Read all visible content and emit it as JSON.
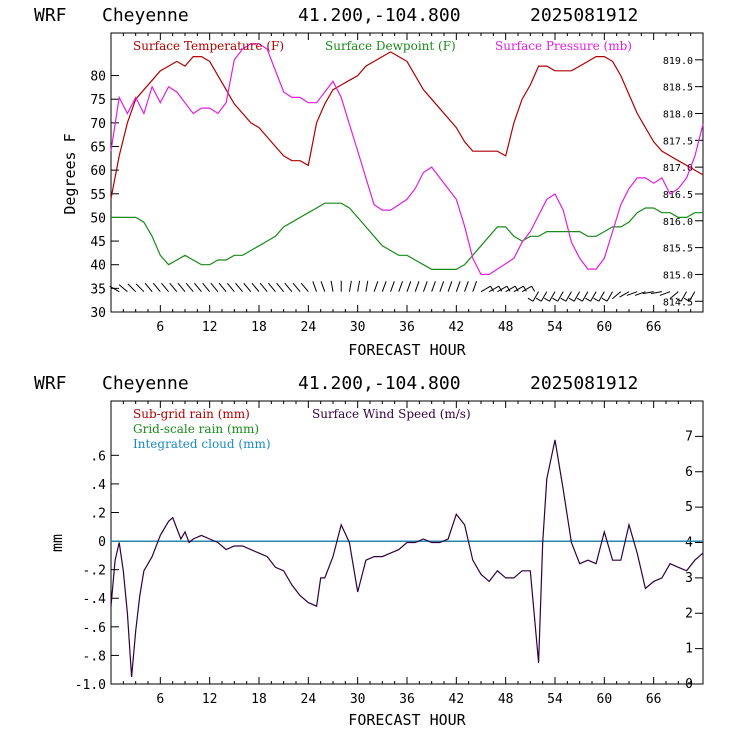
{
  "header": {
    "model": "WRF",
    "location": "Cheyenne",
    "coords": "41.200,-104.800",
    "init": "2025081912"
  },
  "colors": {
    "temperature": "#b00000",
    "dewpoint": "#1a8a1a",
    "pressure": "#e020e0",
    "subgrid_rain": "#b00000",
    "grid_rain": "#1a8a1a",
    "cloud": "#1a8ac0",
    "wind": "#300040"
  },
  "chart_data": [
    {
      "type": "line",
      "xlabel": "FORECAST HOUR",
      "ylabel": "Degrees F",
      "xlim": [
        0,
        72
      ],
      "ylim": [
        30,
        89
      ],
      "xticks": [
        "6",
        "12",
        "18",
        "24",
        "30",
        "36",
        "42",
        "48",
        "54",
        "60",
        "66"
      ],
      "yticks": [
        "30",
        "35",
        "40",
        "45",
        "50",
        "55",
        "60",
        "65",
        "70",
        "75",
        "80"
      ],
      "y2lim": [
        814.3,
        819.5
      ],
      "y2ticks": [
        "814.5",
        "815.0",
        "815.5",
        "816.0",
        "816.5",
        "817.0",
        "817.5",
        "818.0",
        "818.5",
        "819.0"
      ],
      "legend": [
        "Surface Temperature (F)",
        "Surface Dewpoint (F)",
        "Surface Pressure (mb)"
      ],
      "series": [
        {
          "name": "Surface Temperature (F)",
          "x": [
            0,
            1,
            2,
            3,
            4,
            5,
            6,
            7,
            8,
            9,
            10,
            11,
            12,
            13,
            14,
            15,
            16,
            17,
            18,
            19,
            20,
            21,
            22,
            23,
            24,
            25,
            26,
            27,
            28,
            29,
            30,
            31,
            32,
            33,
            34,
            35,
            36,
            37,
            38,
            39,
            40,
            41,
            42,
            43,
            44,
            45,
            46,
            47,
            48,
            49,
            50,
            51,
            52,
            53,
            54,
            55,
            56,
            57,
            58,
            59,
            60,
            61,
            62,
            63,
            64,
            65,
            66,
            67,
            68,
            69,
            70,
            71,
            72
          ],
          "values": [
            54,
            63,
            70,
            75,
            77,
            79,
            81,
            82,
            83,
            82,
            84,
            84,
            83,
            80,
            77,
            74,
            72,
            70,
            69,
            67,
            65,
            63,
            62,
            62,
            61,
            70,
            74,
            77,
            78,
            79,
            80,
            82,
            83,
            84,
            85,
            84,
            83,
            80,
            77,
            75,
            73,
            71,
            69,
            66,
            64,
            64,
            64,
            64,
            63,
            70,
            75,
            78,
            82,
            82,
            81,
            81,
            81,
            82,
            83,
            84,
            84,
            83,
            80,
            76,
            72,
            69,
            66,
            64,
            63,
            62,
            61,
            60,
            59
          ]
        },
        {
          "name": "Surface Dewpoint (F)",
          "x": [
            0,
            1,
            2,
            3,
            4,
            5,
            6,
            7,
            8,
            9,
            10,
            11,
            12,
            13,
            14,
            15,
            16,
            17,
            18,
            19,
            20,
            21,
            22,
            23,
            24,
            25,
            26,
            27,
            28,
            29,
            30,
            31,
            32,
            33,
            34,
            35,
            36,
            37,
            38,
            39,
            40,
            41,
            42,
            43,
            44,
            45,
            46,
            47,
            48,
            49,
            50,
            51,
            52,
            53,
            54,
            55,
            56,
            57,
            58,
            59,
            60,
            61,
            62,
            63,
            64,
            65,
            66,
            67,
            68,
            69,
            70,
            71,
            72
          ],
          "values": [
            50,
            50,
            50,
            50,
            49,
            46,
            42,
            40,
            41,
            42,
            41,
            40,
            40,
            41,
            41,
            42,
            42,
            43,
            44,
            45,
            46,
            48,
            49,
            50,
            51,
            52,
            53,
            53,
            53,
            52,
            50,
            48,
            46,
            44,
            43,
            42,
            42,
            41,
            40,
            39,
            39,
            39,
            39,
            40,
            42,
            44,
            46,
            48,
            48,
            46,
            45,
            46,
            46,
            47,
            47,
            47,
            47,
            47,
            46,
            46,
            47,
            48,
            48,
            49,
            51,
            52,
            52,
            51,
            51,
            50,
            50,
            51,
            51
          ]
        },
        {
          "name": "Surface Pressure (mb)",
          "axis": "right",
          "x": [
            0,
            1,
            2,
            3,
            4,
            5,
            6,
            7,
            8,
            9,
            10,
            11,
            12,
            13,
            14,
            15,
            16,
            17,
            18,
            19,
            20,
            21,
            22,
            23,
            24,
            25,
            26,
            27,
            28,
            29,
            30,
            31,
            32,
            33,
            34,
            35,
            36,
            37,
            38,
            39,
            40,
            41,
            42,
            43,
            44,
            45,
            46,
            47,
            48,
            49,
            50,
            51,
            52,
            53,
            54,
            55,
            56,
            57,
            58,
            59,
            60,
            61,
            62,
            63,
            64,
            65,
            66,
            67,
            68,
            69,
            70,
            71,
            72
          ],
          "values": [
            817.3,
            818.3,
            818.0,
            818.3,
            818.0,
            818.5,
            818.2,
            818.5,
            818.4,
            818.2,
            818.0,
            818.1,
            818.1,
            818.0,
            818.2,
            819.0,
            819.2,
            819.3,
            819.3,
            819.2,
            818.8,
            818.4,
            818.3,
            818.3,
            818.2,
            818.2,
            818.4,
            818.6,
            818.3,
            817.8,
            817.3,
            816.8,
            816.3,
            816.2,
            816.2,
            816.3,
            816.4,
            816.6,
            816.9,
            817.0,
            816.8,
            816.6,
            816.4,
            815.9,
            815.3,
            815.0,
            815.0,
            815.1,
            815.2,
            815.3,
            815.6,
            815.8,
            816.1,
            816.4,
            816.5,
            816.2,
            815.6,
            815.3,
            815.1,
            815.1,
            815.3,
            815.8,
            816.3,
            816.6,
            816.8,
            816.8,
            816.7,
            816.8,
            816.5,
            816.6,
            816.8,
            817.2,
            817.8
          ]
        }
      ],
      "wind_barbs": {
        "x": [
          1,
          2,
          3,
          4,
          5,
          6,
          7,
          8,
          9,
          10,
          11,
          12,
          13,
          14,
          15,
          16,
          17,
          18,
          19,
          20,
          21,
          22,
          23,
          24,
          25,
          26,
          27,
          28,
          29,
          30,
          31,
          32,
          33,
          34,
          35,
          36,
          37,
          38,
          39,
          40,
          41,
          42,
          43,
          44,
          45,
          46,
          47,
          48,
          49,
          50,
          52,
          53,
          54,
          55,
          56,
          57,
          58,
          59,
          60,
          61,
          62,
          63,
          64,
          65,
          66,
          67,
          68,
          69,
          70,
          71
        ],
        "direction_deg": [
          300,
          310,
          315,
          315,
          320,
          320,
          320,
          320,
          320,
          320,
          320,
          320,
          320,
          320,
          320,
          320,
          320,
          320,
          320,
          320,
          320,
          320,
          320,
          320,
          340,
          340,
          350,
          0,
          10,
          10,
          10,
          20,
          20,
          20,
          20,
          20,
          20,
          20,
          20,
          20,
          20,
          20,
          20,
          20,
          60,
          60,
          60,
          60,
          60,
          60,
          210,
          210,
          210,
          210,
          210,
          210,
          210,
          210,
          210,
          210,
          230,
          240,
          250,
          250,
          260,
          260,
          250,
          230,
          210,
          210
        ],
        "speed_kt": [
          5,
          5,
          5,
          5,
          5,
          5,
          5,
          5,
          5,
          5,
          5,
          5,
          5,
          5,
          5,
          5,
          5,
          5,
          5,
          5,
          5,
          5,
          5,
          5,
          5,
          5,
          5,
          5,
          5,
          5,
          5,
          5,
          5,
          5,
          5,
          5,
          5,
          5,
          5,
          5,
          5,
          5,
          5,
          5,
          10,
          10,
          10,
          10,
          10,
          10,
          10,
          10,
          10,
          10,
          10,
          10,
          10,
          10,
          10,
          10,
          5,
          5,
          5,
          5,
          5,
          5,
          5,
          5,
          10,
          10
        ]
      }
    },
    {
      "type": "line",
      "xlabel": "FORECAST HOUR",
      "ylabel": "mm",
      "xlim": [
        0,
        72
      ],
      "ylim": [
        -1.0,
        0.98
      ],
      "xticks": [
        "6",
        "12",
        "18",
        "24",
        "30",
        "36",
        "42",
        "48",
        "54",
        "60",
        "66"
      ],
      "yticks": [
        "-1.0",
        "-.8",
        "-.6",
        "-.4",
        "-.2",
        "0",
        ".2",
        ".4",
        ".6"
      ],
      "y2lim": [
        0,
        8
      ],
      "y2ticks": [
        "0",
        "1",
        "2",
        "3",
        "4",
        "5",
        "6",
        "7"
      ],
      "legend": [
        "Sub-grid rain (mm)",
        "Grid-scale rain (mm)",
        "Integrated cloud (mm)",
        "Surface Wind Speed (m/s)"
      ],
      "series": [
        {
          "name": "Sub-grid rain (mm)",
          "x": [
            0,
            72
          ],
          "values": [
            0,
            0
          ]
        },
        {
          "name": "Grid-scale rain (mm)",
          "x": [
            0,
            72
          ],
          "values": [
            0,
            0
          ]
        },
        {
          "name": "Integrated cloud (mm)",
          "x": [
            0,
            72
          ],
          "values": [
            0,
            0
          ]
        },
        {
          "name": "Surface Wind Speed (m/s)",
          "axis": "right",
          "x": [
            0,
            0.5,
            1,
            1.5,
            2,
            2.5,
            3,
            3.5,
            4,
            5,
            6,
            7,
            7.5,
            8,
            8.5,
            9,
            9.5,
            10,
            11,
            12,
            13,
            14,
            15,
            16,
            17,
            18,
            19,
            20,
            21,
            22,
            23,
            24,
            25,
            25.5,
            26,
            27,
            28,
            29,
            30,
            31,
            32,
            33,
            34,
            35,
            36,
            37,
            38,
            39,
            40,
            41,
            42,
            43,
            44,
            45,
            46,
            47,
            48,
            49,
            50,
            51,
            52,
            52.5,
            53,
            54,
            55,
            56,
            57,
            58,
            59,
            60,
            61,
            62,
            63,
            64,
            65,
            66,
            67,
            68,
            69,
            70,
            71,
            72
          ],
          "values": [
            2.2,
            3.5,
            4.0,
            3.2,
            2.0,
            0.2,
            1.5,
            2.5,
            3.2,
            3.6,
            4.2,
            4.6,
            4.7,
            4.4,
            4.1,
            4.3,
            4.0,
            4.1,
            4.2,
            4.1,
            4.0,
            3.8,
            3.9,
            3.9,
            3.8,
            3.7,
            3.6,
            3.3,
            3.2,
            2.8,
            2.5,
            2.3,
            2.2,
            3.0,
            3.0,
            3.6,
            4.5,
            4.0,
            2.6,
            3.5,
            3.6,
            3.6,
            3.7,
            3.8,
            4.0,
            4.0,
            4.1,
            4.0,
            4.0,
            4.1,
            4.8,
            4.5,
            3.5,
            3.1,
            2.9,
            3.2,
            3.0,
            3.0,
            3.2,
            3.2,
            0.6,
            4.0,
            5.8,
            6.9,
            5.5,
            4.0,
            3.4,
            3.5,
            3.4,
            4.3,
            3.5,
            3.5,
            4.5,
            3.7,
            2.7,
            2.9,
            3.0,
            3.4,
            3.3,
            3.2,
            3.5,
            3.7
          ]
        }
      ]
    }
  ]
}
